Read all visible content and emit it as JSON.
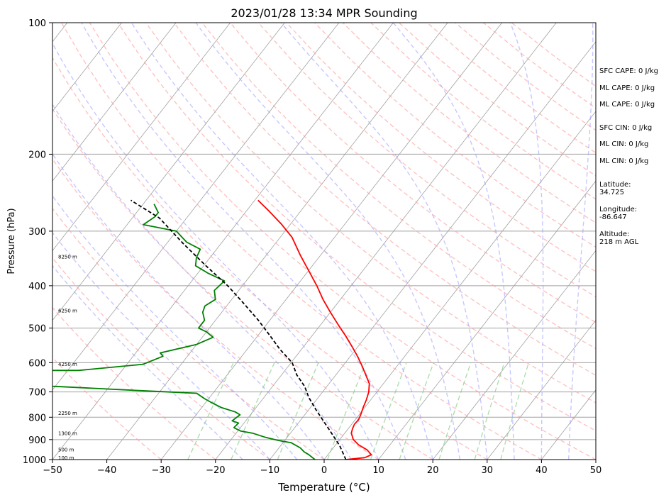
{
  "chart_data": {
    "type": "line",
    "title": "2023/01/28 13:34 MPR Sounding",
    "xlabel": "Temperature (°C)",
    "ylabel": "Pressure (hPa)",
    "xlim": [
      -50,
      50
    ],
    "ylim": [
      1000,
      100
    ],
    "y_scale": "log",
    "x_ticks": [
      -50,
      -40,
      -30,
      -20,
      -10,
      0,
      10,
      20,
      30,
      40,
      50
    ],
    "x_tick_labels": [
      "−50",
      "−40",
      "−30",
      "−20",
      "−10",
      "0",
      "10",
      "20",
      "30",
      "40",
      "50"
    ],
    "y_ticks": [
      1000,
      900,
      800,
      700,
      600,
      500,
      400,
      300,
      200,
      100
    ],
    "y_tick_labels": [
      "1000",
      "900",
      "800",
      "700",
      "600",
      "500",
      "400",
      "300",
      "200",
      "100"
    ],
    "grid": true,
    "skew": "skew-T log-p",
    "series": [
      {
        "role": "temperature",
        "color": "#ff0000",
        "points": [
          [
            4.0,
            1000
          ],
          [
            7.2,
            990
          ],
          [
            8.0,
            975
          ],
          [
            6.5,
            950
          ],
          [
            4.2,
            925
          ],
          [
            2.5,
            900
          ],
          [
            1.2,
            870
          ],
          [
            0.8,
            850
          ],
          [
            0.5,
            830
          ],
          [
            0.6,
            810
          ],
          [
            0.3,
            790
          ],
          [
            -0.3,
            760
          ],
          [
            -0.8,
            730
          ],
          [
            -1.5,
            700
          ],
          [
            -2.6,
            670
          ],
          [
            -4.5,
            640
          ],
          [
            -6.5,
            610
          ],
          [
            -8.7,
            580
          ],
          [
            -11.2,
            550
          ],
          [
            -13.9,
            520
          ],
          [
            -16.9,
            490
          ],
          [
            -20.0,
            460
          ],
          [
            -23.2,
            430
          ],
          [
            -26.3,
            400
          ],
          [
            -29.9,
            370
          ],
          [
            -33.8,
            340
          ],
          [
            -37.8,
            310
          ],
          [
            -41.5,
            290
          ],
          [
            -45.8,
            270
          ],
          [
            -49.4,
            255
          ]
        ]
      },
      {
        "role": "dewpoint",
        "color": "#008000",
        "points": [
          [
            -1.7,
            1000
          ],
          [
            -3.5,
            975
          ],
          [
            -4.8,
            960
          ],
          [
            -6.1,
            940
          ],
          [
            -8.5,
            915
          ],
          [
            -11.0,
            905
          ],
          [
            -13.9,
            890
          ],
          [
            -17.0,
            870
          ],
          [
            -19.5,
            860
          ],
          [
            -21.2,
            845
          ],
          [
            -21.0,
            825
          ],
          [
            -22.5,
            815
          ],
          [
            -21.9,
            790
          ],
          [
            -23.2,
            778
          ],
          [
            -26.4,
            760
          ],
          [
            -29.0,
            740
          ],
          [
            -30.8,
            725
          ],
          [
            -33.0,
            705
          ],
          [
            -44.0,
            695
          ],
          [
            -60.0,
            680
          ],
          [
            -75.0,
            675
          ],
          [
            -75.0,
            625
          ],
          [
            -58.0,
            625
          ],
          [
            -47.0,
            605
          ],
          [
            -44.5,
            580
          ],
          [
            -45.5,
            570
          ],
          [
            -40.0,
            545
          ],
          [
            -38.0,
            525
          ],
          [
            -40.0,
            510
          ],
          [
            -42.0,
            500
          ],
          [
            -42.0,
            480
          ],
          [
            -43.5,
            460
          ],
          [
            -44.0,
            445
          ],
          [
            -43.0,
            430
          ],
          [
            -44.5,
            410
          ],
          [
            -44.0,
            390
          ],
          [
            -48.0,
            375
          ],
          [
            -51.5,
            360
          ],
          [
            -52.5,
            345
          ],
          [
            -53.0,
            330
          ],
          [
            -56.5,
            318
          ],
          [
            -60.0,
            300
          ],
          [
            -67.0,
            290
          ],
          [
            -66.0,
            278
          ],
          [
            -66.0,
            272
          ],
          [
            -68.0,
            260
          ]
        ]
      },
      {
        "role": "parcel",
        "color": "#000000",
        "style": "dashed",
        "points": [
          [
            4.0,
            1000
          ],
          [
            0.9,
            930
          ],
          [
            -3.6,
            850
          ],
          [
            -8.6,
            770
          ],
          [
            -11.8,
            720
          ],
          [
            -14.1,
            680
          ],
          [
            -17.2,
            640
          ],
          [
            -19.8,
            600
          ],
          [
            -23.9,
            560
          ],
          [
            -27.8,
            520
          ],
          [
            -32.1,
            480
          ],
          [
            -37.1,
            440
          ],
          [
            -42.7,
            400
          ],
          [
            -49.6,
            360
          ],
          [
            -57.0,
            320
          ],
          [
            -65.0,
            280
          ],
          [
            -72.8,
            255
          ]
        ]
      }
    ],
    "height_labels": [
      {
        "label": "100 m",
        "p": 988
      },
      {
        "label": "500 m",
        "p": 948
      },
      {
        "label": "1300 m",
        "p": 870
      },
      {
        "label": "2250 m",
        "p": 781
      },
      {
        "label": "4250 m",
        "p": 604
      },
      {
        "label": "6250 m",
        "p": 455
      },
      {
        "label": "8250 m",
        "p": 343
      }
    ],
    "background_lines": {
      "isotherm_color": "#a0a0a0",
      "dry_adiabat_color": "#ff9999",
      "moist_adiabat_color": "#9999ff",
      "mixing_ratio_color": "#88cc88"
    }
  },
  "info_panel": {
    "sfc_cape": "SFC CAPE: 0 J/kg",
    "ml_cape_1": "ML CAPE: 0 J/kg",
    "ml_cape_2": "ML CAPE: 0 J/kg",
    "sfc_cin": "SFC CIN: 0 J/kg",
    "ml_cin_1": "ML CIN: 0 J/kg",
    "ml_cin_2": "ML CIN: 0 J/kg",
    "latitude": "Latitude:\n34.725",
    "longitude": "Longitude:\n-86.647",
    "altitude": "Altitude:\n218 m AGL"
  }
}
